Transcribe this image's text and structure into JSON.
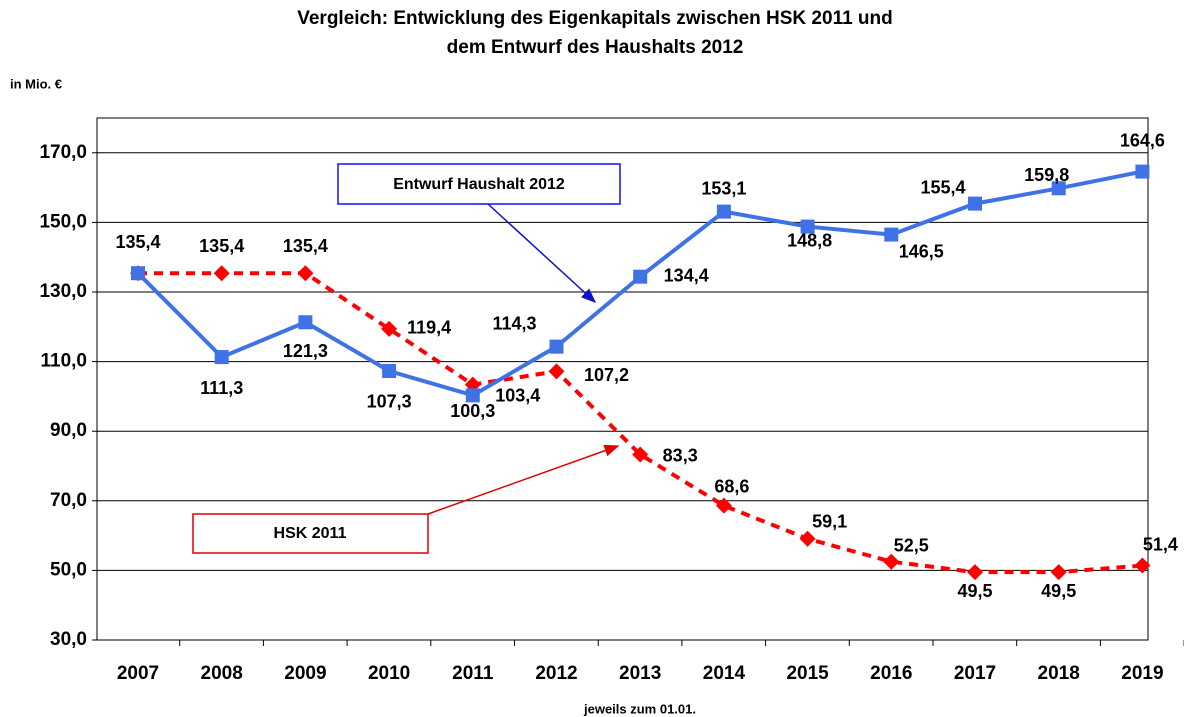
{
  "chart_data": {
    "type": "line",
    "title": [
      "Vergleich: Entwicklung des Eigenkapitals zwischen HSK 2011 und",
      "dem Entwurf des Haushalts 2012"
    ],
    "y_label": "in Mio. €",
    "x_label": "jeweils zum 01.01.",
    "categories": [
      "2007",
      "2008",
      "2009",
      "2010",
      "2011",
      "2012",
      "2013",
      "2014",
      "2015",
      "2016",
      "2017",
      "2018",
      "2019"
    ],
    "series": [
      {
        "name": "Entwurf Haushalt 2012",
        "color": "#3f72e4",
        "dashed": false,
        "marker": "square",
        "values": [
          135.4,
          111.3,
          121.3,
          107.3,
          100.3,
          114.3,
          134.4,
          153.1,
          148.8,
          146.5,
          155.4,
          159.8,
          164.6
        ],
        "value_labels": [
          "135,4",
          "111,3",
          "121,3",
          "107,3",
          "100,3",
          "114,3",
          "134,4",
          "153,1",
          "148,8",
          "146,5",
          "155,4",
          "159,8",
          "164,6"
        ]
      },
      {
        "name": "HSK 2011",
        "color": "#ff0000",
        "dashed": true,
        "marker": "diamond",
        "values": [
          135.4,
          135.4,
          135.4,
          119.4,
          103.4,
          107.2,
          83.3,
          68.6,
          59.1,
          52.5,
          49.5,
          49.5,
          51.4
        ],
        "value_labels": [
          null,
          "135,4",
          "135,4",
          "119,4",
          "103,4",
          "107,2",
          "83,3",
          "68,6",
          "59,1",
          "52,5",
          "49,5",
          "49,5",
          "51,4"
        ]
      }
    ],
    "ylim": [
      30,
      180
    ],
    "yticks": [
      {
        "value": 30,
        "label": "30,0"
      },
      {
        "value": 50,
        "label": "50,0"
      },
      {
        "value": 70,
        "label": "70,0"
      },
      {
        "value": 90,
        "label": "90,0"
      },
      {
        "value": 110,
        "label": "110,0"
      },
      {
        "value": 130,
        "label": "130,0"
      },
      {
        "value": 150,
        "label": "150,0"
      },
      {
        "value": 170,
        "label": "170,0"
      }
    ],
    "grid": true
  }
}
